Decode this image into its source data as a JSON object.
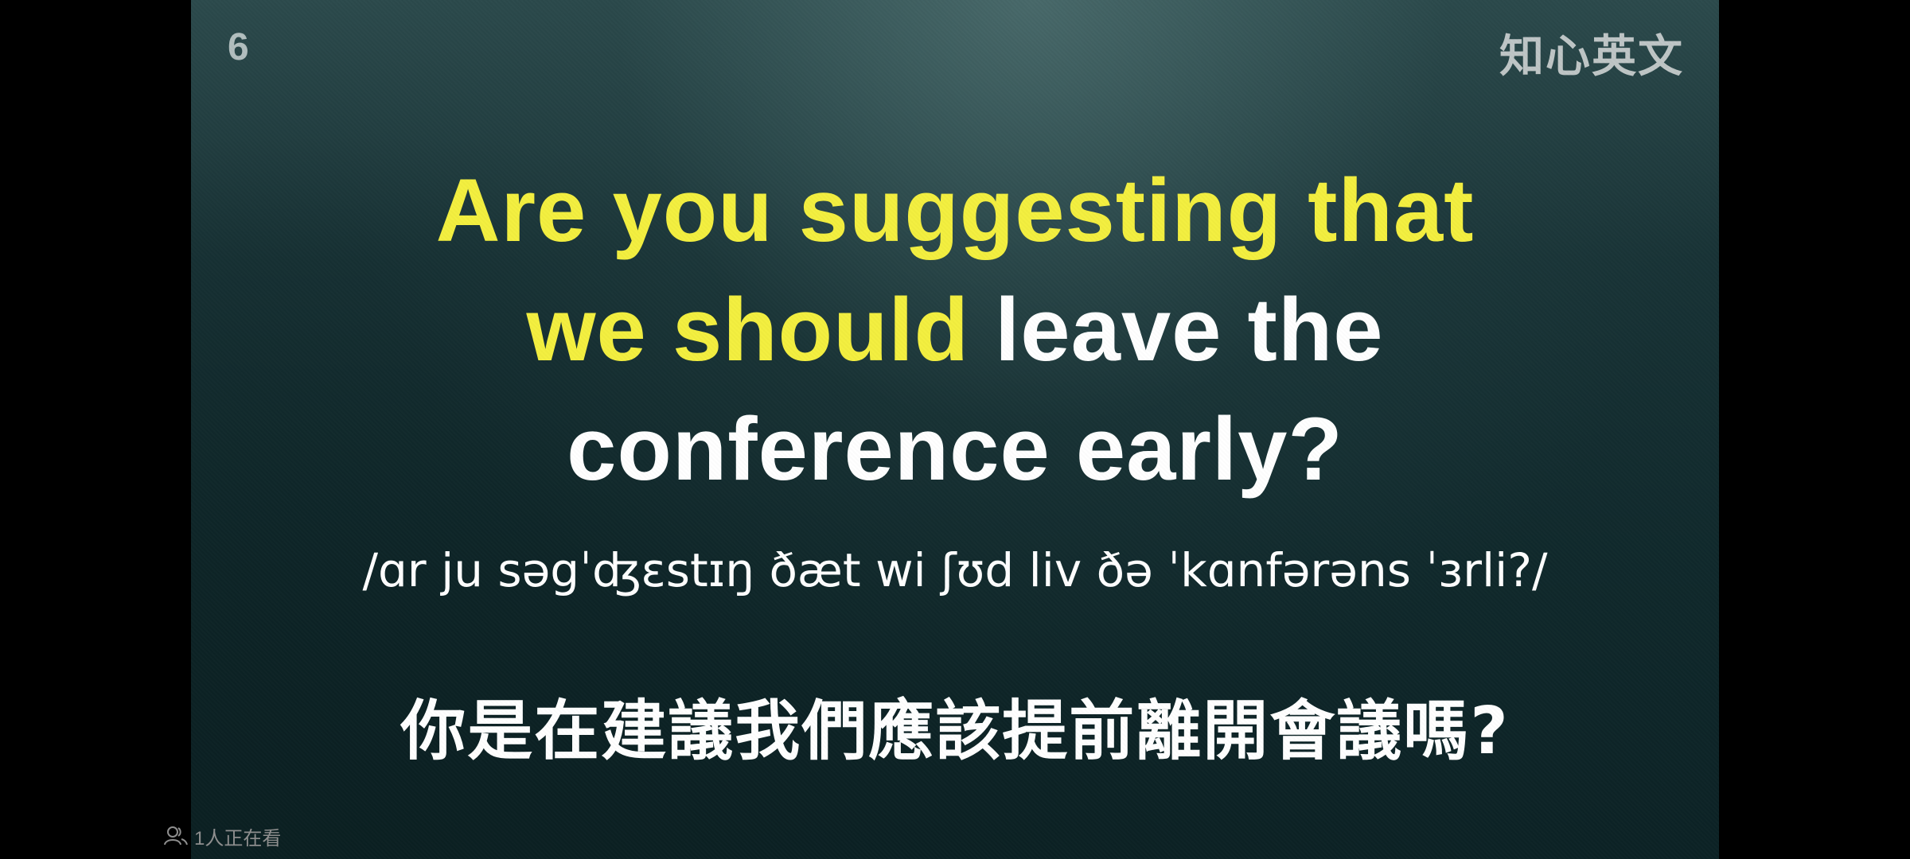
{
  "video": {
    "episode_number": "6",
    "watermark": "知心英文",
    "sentence": {
      "highlighted_line1": "Are you suggesting that",
      "highlighted_line2": "we should",
      "plain_line2": "leave the",
      "plain_line3": "conference early?"
    },
    "ipa": "/ɑr ju səgˈʤɛstɪŋ ðæt wi ʃʊd liv ðə ˈkɑnfərəns ˈɜrli?/",
    "chinese": "你是在建議我們應該提前離開會議嗎?",
    "colors": {
      "highlight": "#f3ef3f",
      "text": "#ffffff",
      "background": "#183336"
    }
  },
  "overlay": {
    "viewer_icon": "people-icon",
    "viewer_count_text": "1人正在看"
  }
}
